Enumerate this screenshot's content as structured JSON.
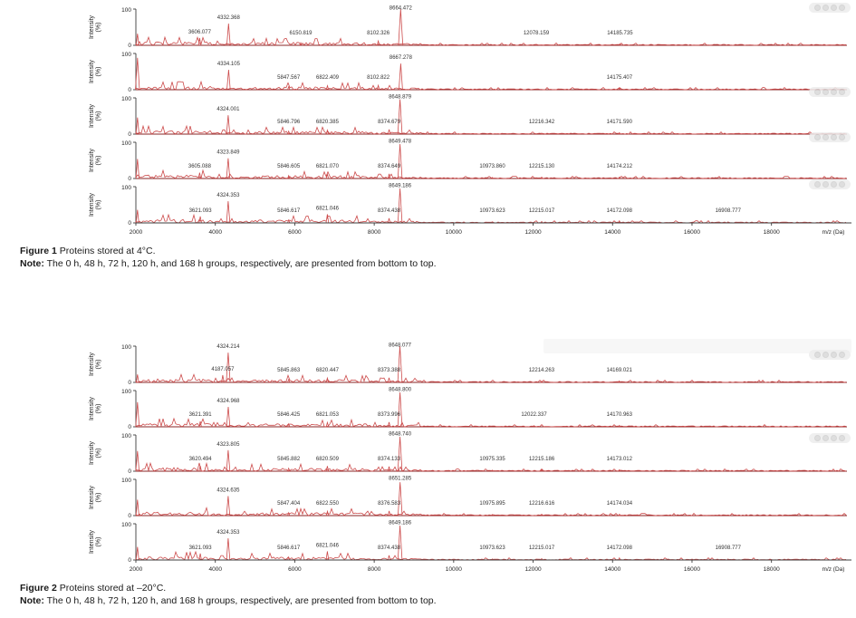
{
  "axis": {
    "y_label_line1": "Intensity",
    "y_label_line2": "(%)",
    "y_ticks": [
      "100",
      "0"
    ],
    "x_tick_values": [
      2000,
      4000,
      6000,
      8000,
      10000,
      12000,
      14000,
      16000,
      18000
    ],
    "x_label": "m/z (Da)",
    "x_domain": [
      2000,
      19900
    ],
    "y_range": [
      0,
      100
    ]
  },
  "colors": {
    "trace": "#cc4b4b",
    "baseline": "#8a2525",
    "axis": "#3c3c3c",
    "label": "#333333"
  },
  "figure1": {
    "caption_label": "Figure 1",
    "caption_text": " Proteins stored at 4°C.",
    "note_label": "Note:",
    "note_text": " The 0 h, 48 h, 72 h, 120 h, and 168 h groups, respectively, are presented from bottom to top.",
    "chart_data": {
      "type": "line",
      "xlabel": "m/z (Da)",
      "ylabel": "Intensity (%)",
      "panels": [
        {
          "peaks": [
            {
              "mz": 2040,
              "i": 32,
              "label": ""
            },
            {
              "mz": 3606.077,
              "i": 20,
              "label": "3606.077"
            },
            {
              "mz": 4332.368,
              "i": 60,
              "label": "4332.368"
            },
            {
              "mz": 6150.819,
              "i": 7,
              "label": "6150.819"
            },
            {
              "mz": 8102.326,
              "i": 12,
              "label": "8102.326"
            },
            {
              "mz": 8664.472,
              "i": 100,
              "label": "8664.472"
            },
            {
              "mz": 12078.159,
              "i": 3,
              "label": "12078.159"
            },
            {
              "mz": 14185.735,
              "i": 4,
              "label": "14185.735"
            }
          ]
        },
        {
          "peaks": [
            {
              "mz": 2040,
              "i": 88,
              "label": ""
            },
            {
              "mz": 4334.105,
              "i": 55,
              "label": "4334.105"
            },
            {
              "mz": 5847.567,
              "i": 8,
              "label": "5847.567"
            },
            {
              "mz": 6822.409,
              "i": 11,
              "label": "6822.409"
            },
            {
              "mz": 8102.822,
              "i": 12,
              "label": "8102.822"
            },
            {
              "mz": 8667.278,
              "i": 72,
              "label": "8667.278"
            },
            {
              "mz": 14175.407,
              "i": 4,
              "label": "14175.407"
            }
          ]
        },
        {
          "peaks": [
            {
              "mz": 2040,
              "i": 46,
              "label": ""
            },
            {
              "mz": 4324.001,
              "i": 52,
              "label": "4324.001"
            },
            {
              "mz": 5846.796,
              "i": 8,
              "label": "5846.796"
            },
            {
              "mz": 6820.385,
              "i": 11,
              "label": "6820.385"
            },
            {
              "mz": 8374.679,
              "i": 13,
              "label": "8374.679"
            },
            {
              "mz": 8648.879,
              "i": 96,
              "label": "8648.879"
            },
            {
              "mz": 12216.342,
              "i": 3,
              "label": "12216.342"
            },
            {
              "mz": 14171.59,
              "i": 4,
              "label": "14171.590"
            }
          ]
        },
        {
          "peaks": [
            {
              "mz": 2040,
              "i": 54,
              "label": ""
            },
            {
              "mz": 3605.088,
              "i": 16,
              "label": "3605.088"
            },
            {
              "mz": 4323.849,
              "i": 56,
              "label": "4323.849"
            },
            {
              "mz": 5846.605,
              "i": 8,
              "label": "5846.605"
            },
            {
              "mz": 6821.07,
              "i": 12,
              "label": "6821.070"
            },
            {
              "mz": 8374.649,
              "i": 13,
              "label": "8374.649"
            },
            {
              "mz": 8649.478,
              "i": 95,
              "label": "8649.478"
            },
            {
              "mz": 10973.86,
              "i": 3,
              "label": "10973.860"
            },
            {
              "mz": 12215.13,
              "i": 4,
              "label": "12215.130"
            },
            {
              "mz": 14174.212,
              "i": 4,
              "label": "14174.212"
            }
          ]
        },
        {
          "peaks": [
            {
              "mz": 2040,
              "i": 36,
              "label": ""
            },
            {
              "mz": 3621.093,
              "i": 18,
              "label": "3621.093"
            },
            {
              "mz": 4324.353,
              "i": 60,
              "label": "4324.353"
            },
            {
              "mz": 5846.617,
              "i": 8,
              "label": "5846.617"
            },
            {
              "mz": 6821.046,
              "i": 24,
              "label": "6821.046"
            },
            {
              "mz": 8374.438,
              "i": 13,
              "label": "8374.438"
            },
            {
              "mz": 8649.186,
              "i": 95,
              "label": "8649.186"
            },
            {
              "mz": 10973.623,
              "i": 3,
              "label": "10973.623"
            },
            {
              "mz": 12215.017,
              "i": 4,
              "label": "12215.017"
            },
            {
              "mz": 14172.098,
              "i": 6,
              "label": "14172.098"
            },
            {
              "mz": 16908.777,
              "i": 3,
              "label": "16908.777"
            }
          ]
        }
      ]
    }
  },
  "figure2": {
    "caption_label": "Figure 2",
    "caption_text": " Proteins stored at –20°C.",
    "note_label": "Note:",
    "note_text": " The 0 h, 48 h, 72 h, 120 h, and 168 h groups, respectively, are presented from bottom to top.",
    "chart_data": {
      "type": "line",
      "xlabel": "m/z (Da)",
      "ylabel": "Intensity (%)",
      "panels": [
        {
          "peaks": [
            {
              "mz": 2040,
              "i": 22,
              "label": ""
            },
            {
              "mz": 4187.057,
              "i": 20,
              "label": "4187.057"
            },
            {
              "mz": 4324.214,
              "i": 82,
              "label": "4324.214"
            },
            {
              "mz": 5845.863,
              "i": 8,
              "label": "5845.863"
            },
            {
              "mz": 6820.447,
              "i": 12,
              "label": "6820.447"
            },
            {
              "mz": 8373.388,
              "i": 13,
              "label": "8373.388"
            },
            {
              "mz": 8648.077,
              "i": 100,
              "label": "8648.077"
            },
            {
              "mz": 12214.263,
              "i": 3,
              "label": "12214.263"
            },
            {
              "mz": 14169.021,
              "i": 4,
              "label": "14169.021"
            }
          ]
        },
        {
          "peaks": [
            {
              "mz": 2040,
              "i": 68,
              "label": ""
            },
            {
              "mz": 3621.391,
              "i": 15,
              "label": "3621.391"
            },
            {
              "mz": 4324.968,
              "i": 55,
              "label": "4324.968"
            },
            {
              "mz": 5846.425,
              "i": 8,
              "label": "5846.425"
            },
            {
              "mz": 6821.053,
              "i": 12,
              "label": "6821.053"
            },
            {
              "mz": 8373.996,
              "i": 13,
              "label": "8373.996"
            },
            {
              "mz": 8648.8,
              "i": 95,
              "label": "8648.800"
            },
            {
              "mz": 12022.337,
              "i": 3,
              "label": "12022.337"
            },
            {
              "mz": 14170.963,
              "i": 4,
              "label": "14170.963"
            }
          ]
        },
        {
          "peaks": [
            {
              "mz": 2040,
              "i": 56,
              "label": ""
            },
            {
              "mz": 3620.494,
              "i": 15,
              "label": "3620.494"
            },
            {
              "mz": 4323.805,
              "i": 58,
              "label": "4323.805"
            },
            {
              "mz": 5845.882,
              "i": 8,
              "label": "5845.882"
            },
            {
              "mz": 6820.509,
              "i": 14,
              "label": "6820.509"
            },
            {
              "mz": 8374.133,
              "i": 13,
              "label": "8374.133"
            },
            {
              "mz": 8648.74,
              "i": 95,
              "label": "8648.740"
            },
            {
              "mz": 10975.335,
              "i": 3,
              "label": "10975.335"
            },
            {
              "mz": 12215.186,
              "i": 4,
              "label": "12215.186"
            },
            {
              "mz": 14173.012,
              "i": 4,
              "label": "14173.012"
            }
          ]
        },
        {
          "peaks": [
            {
              "mz": 2040,
              "i": 44,
              "label": ""
            },
            {
              "mz": 4324.635,
              "i": 54,
              "label": "4324.635"
            },
            {
              "mz": 5847.404,
              "i": 8,
              "label": "5847.404"
            },
            {
              "mz": 6822.55,
              "i": 12,
              "label": "6822.550"
            },
            {
              "mz": 8376.583,
              "i": 13,
              "label": "8376.583"
            },
            {
              "mz": 8651.285,
              "i": 92,
              "label": "8651.285"
            },
            {
              "mz": 10975.895,
              "i": 3,
              "label": "10975.895"
            },
            {
              "mz": 12216.616,
              "i": 4,
              "label": "12216.616"
            },
            {
              "mz": 14174.034,
              "i": 4,
              "label": "14174.034"
            }
          ]
        },
        {
          "peaks": [
            {
              "mz": 2040,
              "i": 36,
              "label": ""
            },
            {
              "mz": 3621.093,
              "i": 18,
              "label": "3621.093"
            },
            {
              "mz": 4324.353,
              "i": 60,
              "label": "4324.353"
            },
            {
              "mz": 5846.617,
              "i": 8,
              "label": "5846.617"
            },
            {
              "mz": 6821.046,
              "i": 24,
              "label": "6821.046"
            },
            {
              "mz": 8374.438,
              "i": 13,
              "label": "8374.438"
            },
            {
              "mz": 8649.186,
              "i": 95,
              "label": "8649.186"
            },
            {
              "mz": 10973.623,
              "i": 3,
              "label": "10973.623"
            },
            {
              "mz": 12215.017,
              "i": 4,
              "label": "12215.017"
            },
            {
              "mz": 14172.098,
              "i": 6,
              "label": "14172.098"
            },
            {
              "mz": 16908.777,
              "i": 3,
              "label": "16908.777"
            }
          ]
        }
      ]
    }
  }
}
